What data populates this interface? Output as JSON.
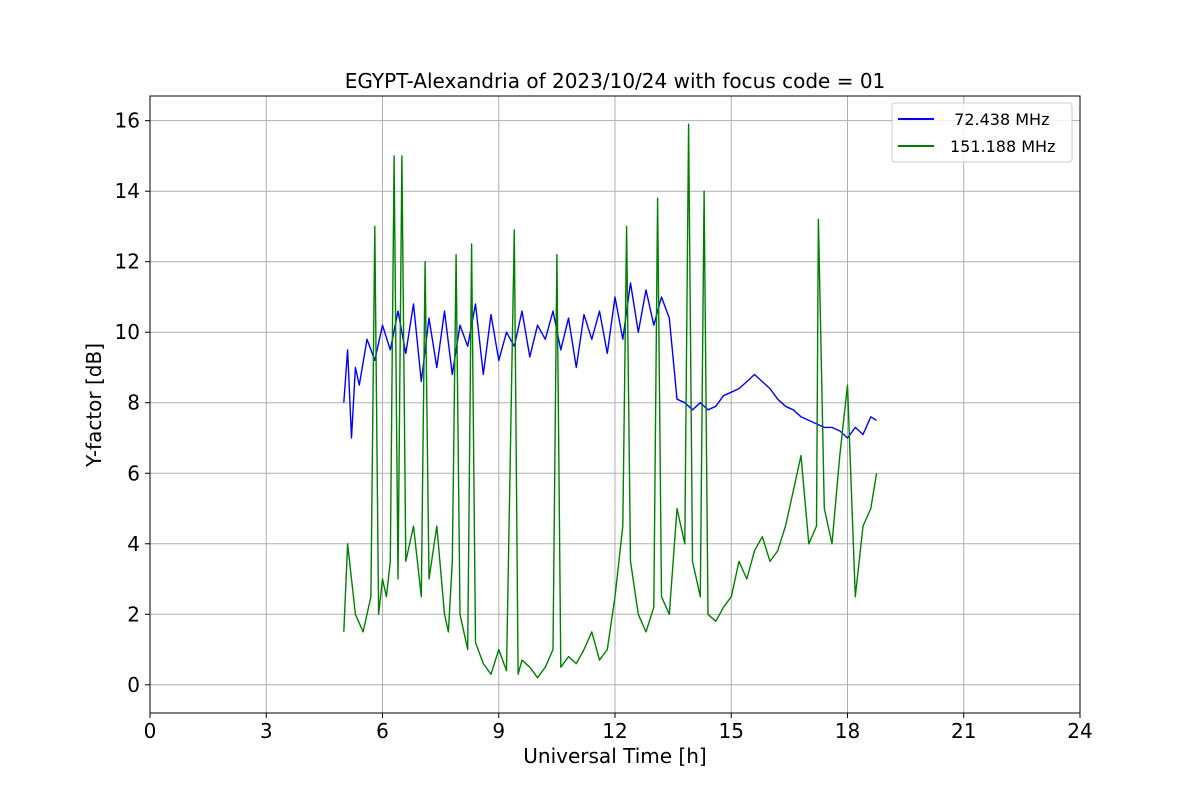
{
  "chart_data": {
    "type": "line",
    "title": "EGYPT-Alexandria of 2023/10/24 with focus code = 01",
    "xlabel": "Universal Time [h]",
    "ylabel": "Y-factor [dB]",
    "xlim": [
      0,
      24
    ],
    "ylim": [
      -0.8,
      16.7
    ],
    "xticks": [
      0,
      3,
      6,
      9,
      12,
      15,
      18,
      21,
      24
    ],
    "yticks": [
      0,
      2,
      4,
      6,
      8,
      10,
      12,
      14,
      16
    ],
    "xtick_labels": [
      "0",
      "3",
      "6",
      "9",
      "12",
      "15",
      "18",
      "21",
      "24"
    ],
    "ytick_labels": [
      "0",
      "2",
      "4",
      "6",
      "8",
      "10",
      "12",
      "14",
      "16"
    ],
    "grid": true,
    "legend_position": "top-right",
    "series": [
      {
        "name": "72.438 MHz",
        "legend_label": "  72.438 MHz",
        "color": "#0000ff",
        "x": [
          5.0,
          5.1,
          5.2,
          5.3,
          5.4,
          5.6,
          5.8,
          6.0,
          6.2,
          6.4,
          6.6,
          6.8,
          7.0,
          7.2,
          7.4,
          7.6,
          7.8,
          8.0,
          8.2,
          8.4,
          8.6,
          8.8,
          9.0,
          9.2,
          9.4,
          9.6,
          9.8,
          10.0,
          10.2,
          10.4,
          10.6,
          10.8,
          11.0,
          11.2,
          11.4,
          11.6,
          11.8,
          12.0,
          12.2,
          12.4,
          12.6,
          12.8,
          13.0,
          13.2,
          13.4,
          13.6,
          13.8,
          14.0,
          14.2,
          14.4,
          14.6,
          14.8,
          15.0,
          15.2,
          15.4,
          15.6,
          15.8,
          16.0,
          16.2,
          16.4,
          16.6,
          16.8,
          17.0,
          17.2,
          17.4,
          17.6,
          17.8,
          18.0,
          18.2,
          18.4,
          18.6,
          18.75
        ],
        "y": [
          8.0,
          9.5,
          7.0,
          9.0,
          8.5,
          9.8,
          9.2,
          10.2,
          9.5,
          10.6,
          9.4,
          10.8,
          8.6,
          10.4,
          9.0,
          10.6,
          8.8,
          10.2,
          9.6,
          10.8,
          8.8,
          10.5,
          9.2,
          10.0,
          9.6,
          10.6,
          9.3,
          10.2,
          9.8,
          10.6,
          9.5,
          10.4,
          9.0,
          10.5,
          9.8,
          10.6,
          9.4,
          11.0,
          9.8,
          11.4,
          10.0,
          11.2,
          10.2,
          11.0,
          10.4,
          8.1,
          8.0,
          7.8,
          8.0,
          7.8,
          7.9,
          8.2,
          8.3,
          8.4,
          8.6,
          8.8,
          8.6,
          8.4,
          8.1,
          7.9,
          7.8,
          7.6,
          7.5,
          7.4,
          7.3,
          7.3,
          7.2,
          7.0,
          7.3,
          7.1,
          7.6,
          7.5
        ]
      },
      {
        "name": "151.188 MHz",
        "legend_label": "151.188 MHz",
        "color": "#008000",
        "x": [
          5.0,
          5.1,
          5.3,
          5.5,
          5.7,
          5.8,
          5.9,
          6.0,
          6.1,
          6.2,
          6.3,
          6.4,
          6.5,
          6.6,
          6.8,
          7.0,
          7.1,
          7.2,
          7.4,
          7.6,
          7.7,
          7.8,
          7.9,
          8.0,
          8.2,
          8.3,
          8.4,
          8.6,
          8.8,
          9.0,
          9.2,
          9.4,
          9.5,
          9.6,
          9.8,
          10.0,
          10.2,
          10.4,
          10.5,
          10.6,
          10.8,
          11.0,
          11.2,
          11.4,
          11.6,
          11.8,
          12.0,
          12.2,
          12.3,
          12.4,
          12.6,
          12.8,
          13.0,
          13.1,
          13.2,
          13.4,
          13.6,
          13.8,
          13.9,
          14.0,
          14.2,
          14.3,
          14.4,
          14.6,
          14.8,
          15.0,
          15.2,
          15.4,
          15.6,
          15.8,
          16.0,
          16.2,
          16.4,
          16.6,
          16.8,
          17.0,
          17.2,
          17.25,
          17.4,
          17.6,
          17.8,
          18.0,
          18.2,
          18.4,
          18.6,
          18.75
        ],
        "y": [
          1.5,
          4.0,
          2.0,
          1.5,
          2.5,
          13.0,
          2.0,
          3.0,
          2.5,
          3.5,
          15.0,
          3.0,
          15.0,
          3.5,
          4.5,
          2.5,
          12.0,
          3.0,
          4.5,
          2.0,
          1.5,
          3.5,
          12.2,
          2.0,
          1.0,
          12.5,
          1.2,
          0.6,
          0.3,
          1.0,
          0.4,
          12.9,
          0.3,
          0.7,
          0.5,
          0.2,
          0.5,
          1.0,
          12.2,
          0.5,
          0.8,
          0.6,
          1.0,
          1.5,
          0.7,
          1.0,
          2.5,
          4.5,
          13.0,
          3.5,
          2.0,
          1.5,
          2.2,
          13.8,
          2.5,
          2.0,
          5.0,
          4.0,
          15.9,
          3.5,
          2.5,
          14.0,
          2.0,
          1.8,
          2.2,
          2.5,
          3.5,
          3.0,
          3.8,
          4.2,
          3.5,
          3.8,
          4.5,
          5.5,
          6.5,
          4.0,
          4.5,
          13.2,
          5.0,
          4.0,
          6.5,
          8.5,
          2.5,
          4.5,
          5.0,
          6.0
        ]
      }
    ]
  }
}
